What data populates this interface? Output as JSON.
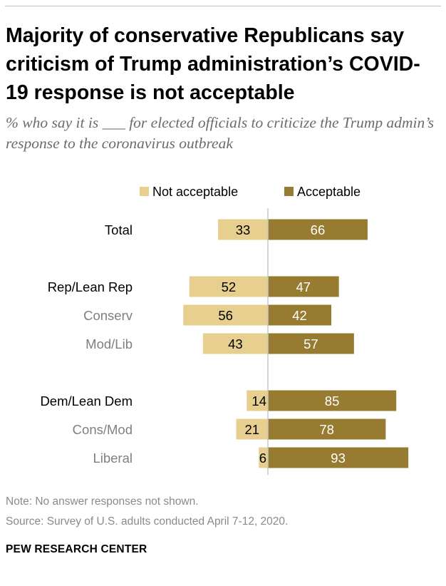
{
  "title": "Majority of conservative Republicans say criticism of Trump administration’s COVID-19 response is not acceptable",
  "subtitle": "% who say it is ___ for elected officials to criticize the Trump admin’s response to the coronavirus outbreak",
  "note": "Note: No answer responses not shown.",
  "source": "Source: Survey of U.S. adults conducted April 7-12, 2020.",
  "brand": "PEW RESEARCH CENTER",
  "colors": {
    "not_acceptable": "#e6cf8f",
    "acceptable": "#977b30",
    "label_primary": "#000000",
    "label_secondary": "#7f7f7f",
    "value_on_light": "#000000",
    "value_on_dark": "#ffffff"
  },
  "chart_data": {
    "type": "bar",
    "orientation": "horizontal-diverging",
    "xlim": [
      -60,
      100
    ],
    "legend": [
      "Not acceptable",
      "Acceptable"
    ],
    "categories": [
      "Total",
      "Rep/Lean Rep",
      "Conserv",
      "Mod/Lib",
      "Dem/Lean Dem",
      "Cons/Mod",
      "Liberal"
    ],
    "category_level": [
      "primary",
      "primary",
      "secondary",
      "secondary",
      "primary",
      "secondary",
      "secondary"
    ],
    "series": [
      {
        "name": "Not acceptable",
        "values": [
          33,
          52,
          56,
          43,
          14,
          21,
          6
        ]
      },
      {
        "name": "Acceptable",
        "values": [
          66,
          47,
          42,
          57,
          85,
          78,
          93
        ]
      }
    ]
  }
}
